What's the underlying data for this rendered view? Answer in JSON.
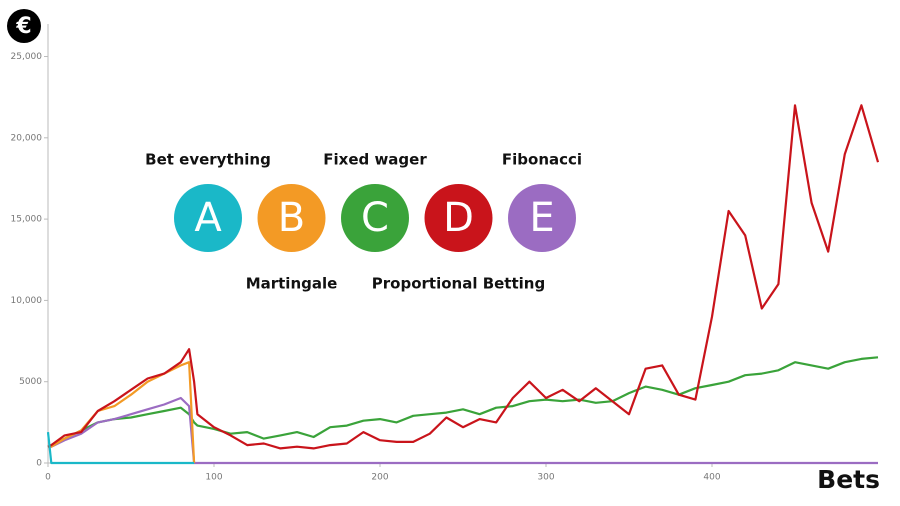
{
  "chart_data": {
    "type": "line",
    "y_label": "€",
    "x_label": "Bets",
    "x": [
      0,
      2,
      10,
      20,
      30,
      40,
      50,
      60,
      70,
      80,
      85,
      88,
      90,
      100,
      110,
      120,
      130,
      140,
      150,
      160,
      170,
      180,
      190,
      200,
      210,
      220,
      230,
      240,
      250,
      260,
      270,
      280,
      290,
      300,
      310,
      320,
      330,
      340,
      350,
      360,
      370,
      380,
      390,
      400,
      410,
      420,
      430,
      440,
      450,
      460,
      470,
      480,
      490,
      500
    ],
    "xlim": [
      0,
      500
    ],
    "xticks": [
      0,
      100,
      200,
      300,
      400
    ],
    "ylim": [
      0,
      27000
    ],
    "yticks": [
      0,
      5000,
      {
        "value": 10000,
        "label": "10,000"
      },
      {
        "value": 15000,
        "label": "15,000"
      },
      {
        "value": 20000,
        "label": "20,000"
      },
      {
        "value": 25000,
        "label": "25,000"
      }
    ],
    "series": [
      {
        "name": "Fixed wager",
        "letter": "C",
        "color": "#3aa33a",
        "values": [
          1000,
          1100,
          1500,
          2000,
          2500,
          2700,
          2800,
          3000,
          3200,
          3400,
          3000,
          2500,
          2300,
          2100,
          1800,
          1900,
          1500,
          1700,
          1900,
          1600,
          2200,
          2300,
          2600,
          2700,
          2500,
          2900,
          3000,
          3100,
          3300,
          3000,
          3400,
          3500,
          3800,
          3900,
          3800,
          3900,
          3700,
          3800,
          4300,
          4700,
          4500,
          4200,
          4600,
          4800,
          5000,
          5400,
          5500,
          5700,
          6200,
          6000,
          5800,
          6200,
          6400,
          6500
        ]
      },
      {
        "name": "Fibonacci",
        "letter": "E",
        "color": "#9b6cc2",
        "values": [
          1000,
          1000,
          1400,
          1800,
          2500,
          2700,
          3000,
          3300,
          3600,
          4000,
          3500,
          0,
          0,
          0,
          0,
          0,
          0,
          0,
          0,
          0,
          0,
          0,
          0,
          0,
          0,
          0,
          0,
          0,
          0,
          0,
          0,
          0,
          0,
          0,
          0,
          0,
          0,
          0,
          0,
          0,
          0,
          0,
          0,
          0,
          0,
          0,
          0,
          0,
          0,
          0,
          0,
          0,
          0,
          0
        ]
      },
      {
        "name": "Martingale",
        "letter": "B",
        "color": "#f39a25",
        "values": [
          1000,
          1000,
          1500,
          2000,
          3200,
          3500,
          4200,
          5000,
          5500,
          6000,
          6200,
          0,
          null,
          null,
          null,
          null,
          null,
          null,
          null,
          null,
          null,
          null,
          null,
          null,
          null,
          null,
          null,
          null,
          null,
          null,
          null,
          null,
          null,
          null,
          null,
          null,
          null,
          null,
          null,
          null,
          null,
          null,
          null,
          null,
          null,
          null,
          null,
          null,
          null,
          null,
          null,
          null,
          null,
          null
        ]
      },
      {
        "name": "Proportional Betting",
        "letter": "D",
        "color": "#c9141b",
        "values": [
          1000,
          1100,
          1700,
          1900,
          3200,
          3800,
          4500,
          5200,
          5500,
          6200,
          7000,
          5000,
          3000,
          2200,
          1700,
          1100,
          1200,
          900,
          1000,
          900,
          1100,
          1200,
          1900,
          1400,
          1300,
          1300,
          1800,
          2800,
          2200,
          2700,
          2500,
          4000,
          5000,
          4000,
          4500,
          3800,
          4600,
          3800,
          3000,
          5800,
          6000,
          4200,
          3900,
          9000,
          15500,
          14000,
          9500,
          11000,
          22000,
          16000,
          13000,
          19000,
          22000,
          18500
        ]
      },
      {
        "name": "Bet everything",
        "letter": "A",
        "color": "#1ab8c8",
        "values": [
          1900,
          0,
          0,
          0,
          0,
          0,
          0,
          0,
          0,
          0,
          0,
          0,
          null,
          null,
          null,
          null,
          null,
          null,
          null,
          null,
          null,
          null,
          null,
          null,
          null,
          null,
          null,
          null,
          null,
          null,
          null,
          null,
          null,
          null,
          null,
          null,
          null,
          null,
          null,
          null,
          null,
          null,
          null,
          null,
          null,
          null,
          null,
          null,
          null,
          null,
          null,
          null,
          null,
          null
        ]
      }
    ]
  }
}
